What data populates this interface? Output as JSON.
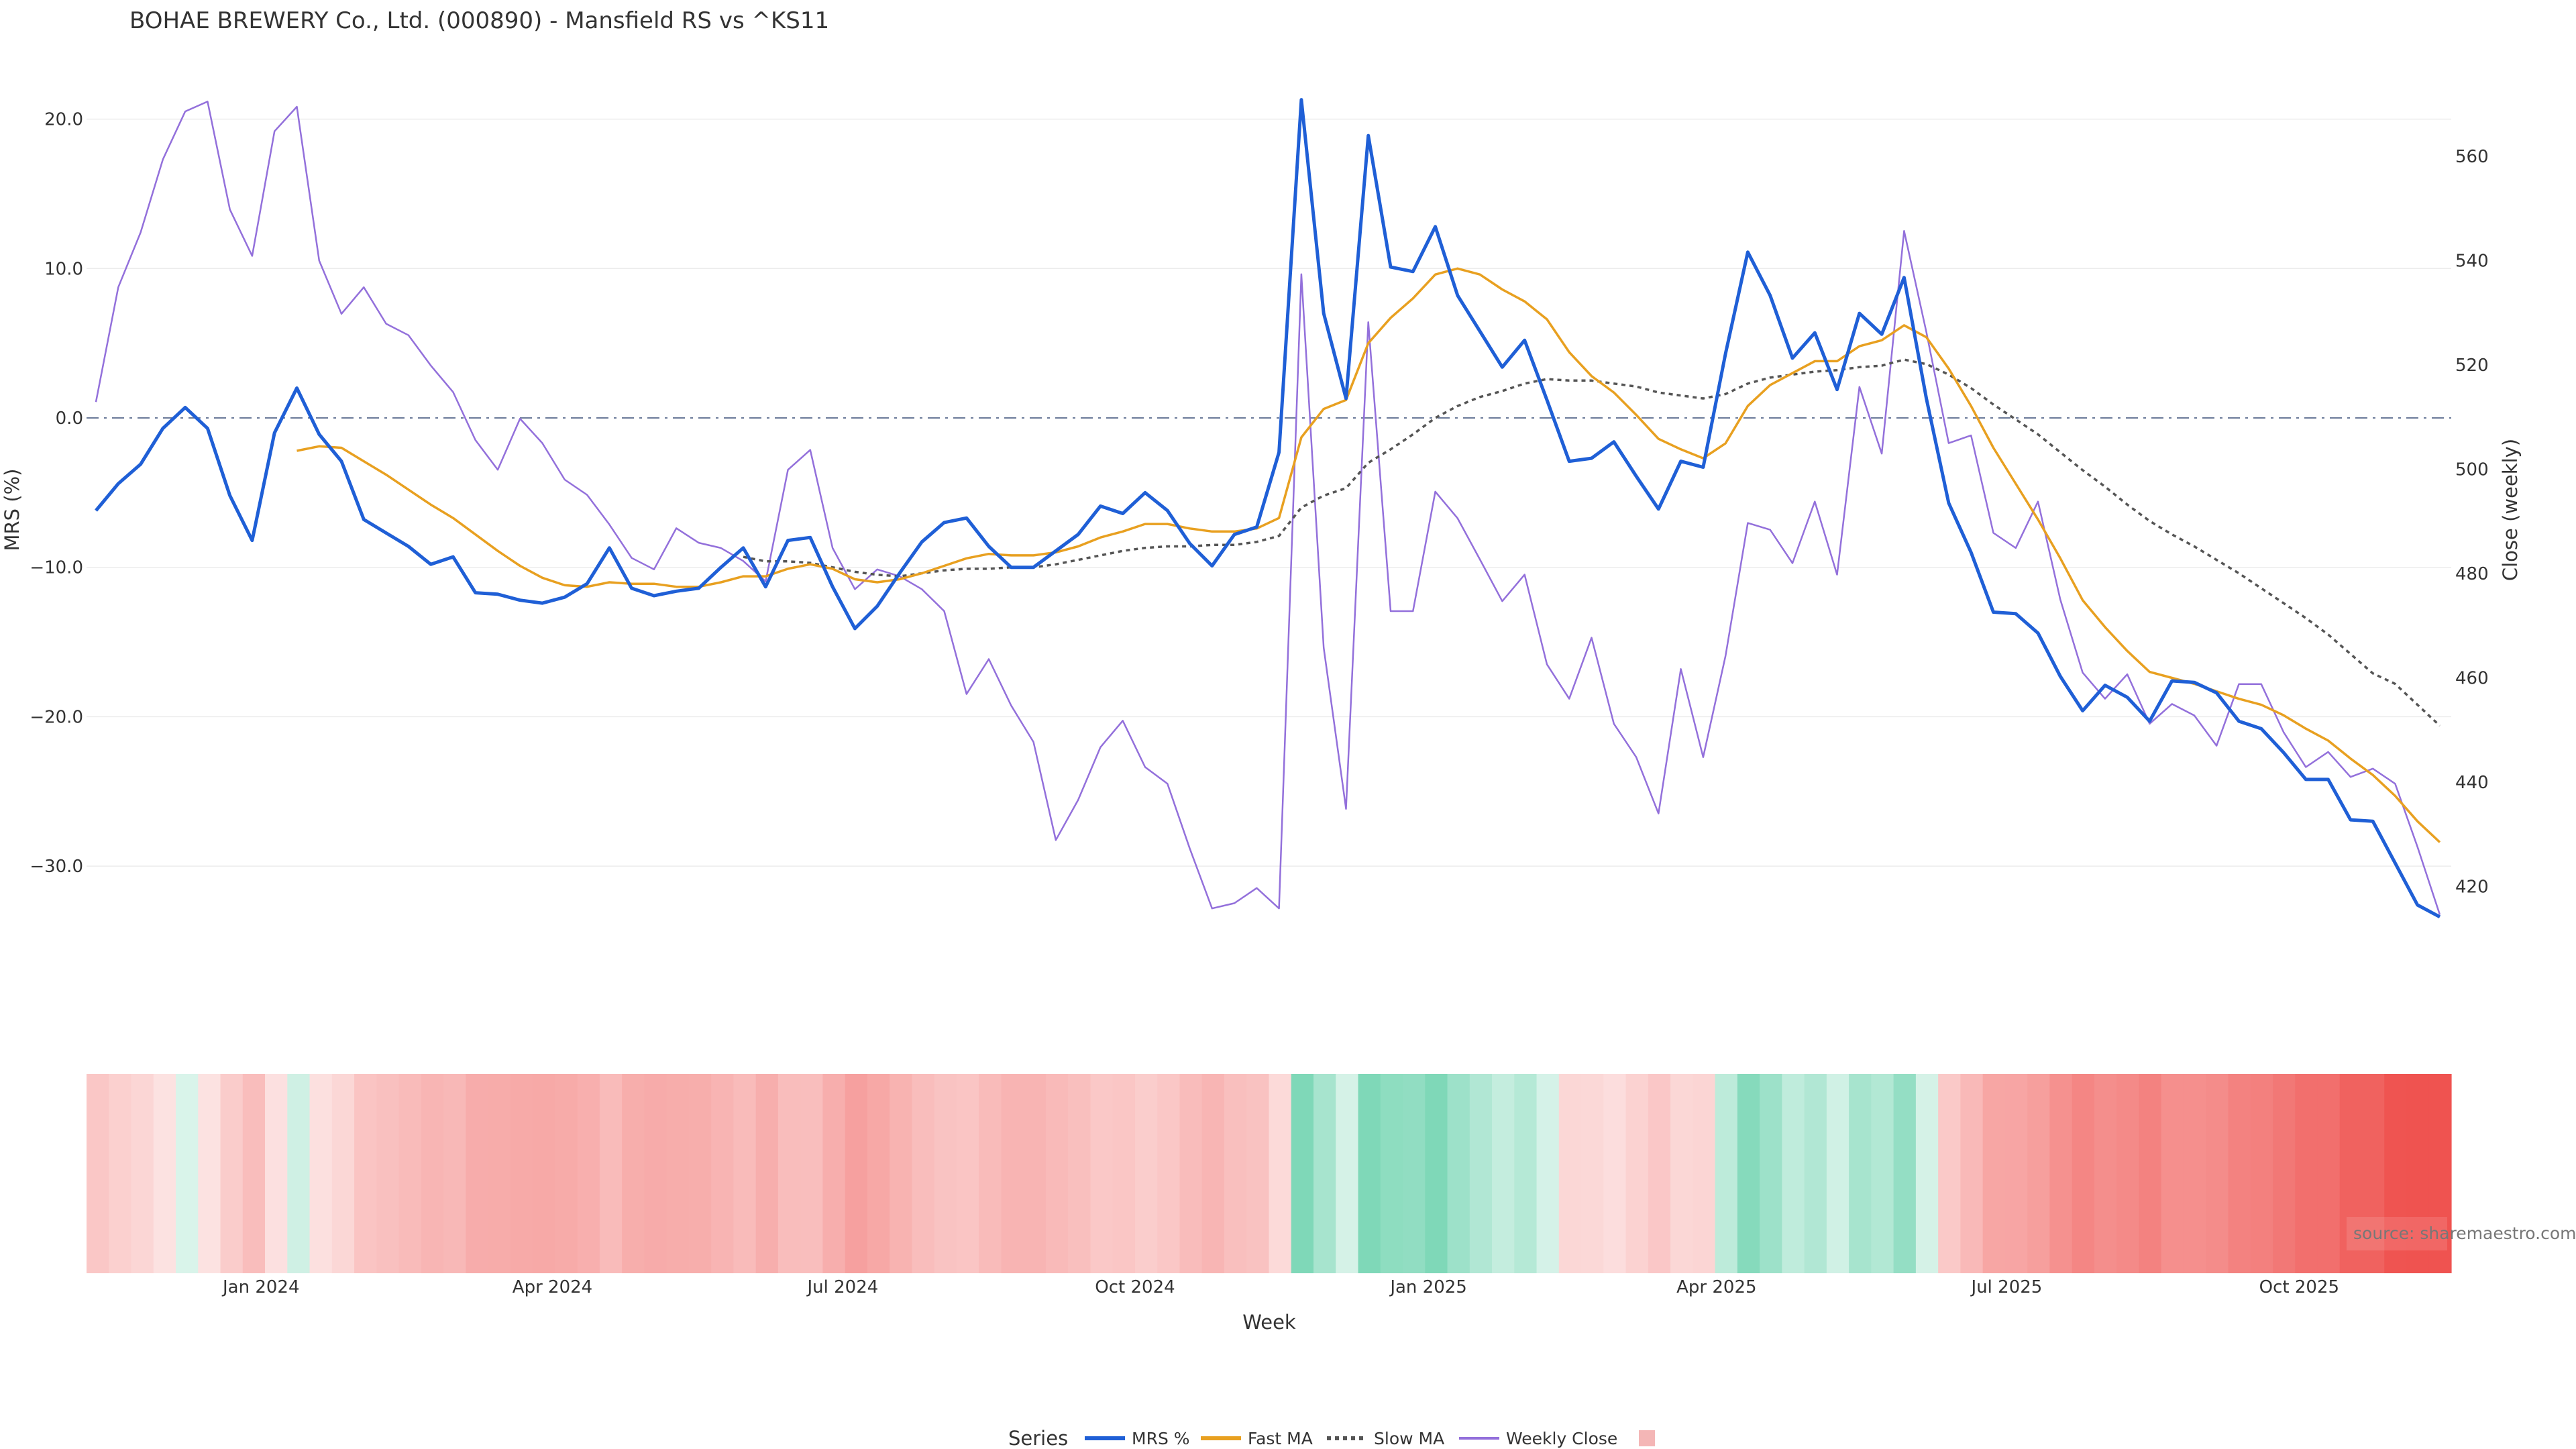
{
  "chart_data": {
    "type": "line",
    "title": "BOHAE BREWERY Co., Ltd. (000890) - Mansfield RS vs ^KS11",
    "xlabel": "Week",
    "ylabel_left": "MRS (%)",
    "ylabel_right": "Close (weekly)",
    "left_ylim": [
      -36,
      24
    ],
    "left_ticks": [
      20,
      10,
      0,
      -10,
      -20,
      -30
    ],
    "left_tick_labels": [
      "20.0",
      "10.0",
      "0.0",
      "−10.0",
      "−20.0",
      "−30.0"
    ],
    "right_ylim": [
      410,
      572
    ],
    "right_ticks": [
      560,
      540,
      520,
      500,
      480,
      460,
      440,
      420
    ],
    "right_tick_labels": [
      "560",
      "540",
      "520",
      "500",
      "480",
      "460",
      "440",
      "420"
    ],
    "x_ticks": [
      {
        "label": "Jan 2024",
        "week": 7.4
      },
      {
        "label": "Apr 2024",
        "week": 20.45
      },
      {
        "label": "Jul 2024",
        "week": 33.46
      },
      {
        "label": "Oct 2024",
        "week": 46.55
      },
      {
        "label": "Jan 2025",
        "week": 59.7
      },
      {
        "label": "Apr 2025",
        "week": 72.6
      },
      {
        "label": "Jul 2025",
        "week": 85.6
      },
      {
        "label": "Oct 2025",
        "week": 98.7
      }
    ],
    "grid": true,
    "zero_line": true,
    "legend_title": "Series",
    "legend_placement": "bottom-center",
    "series": [
      {
        "name": "MRS %",
        "axis": "left",
        "color": "#1f5fd6",
        "start": 0,
        "values": [
          -6.2,
          -4.4,
          -3.1,
          -0.7,
          0.7,
          -0.7,
          -5.2,
          -8.2,
          -1.0,
          2.0,
          -1.1,
          -2.9,
          -6.8,
          -7.7,
          -8.6,
          -9.8,
          -9.3,
          -11.7,
          -11.8,
          -12.2,
          -12.4,
          -12.0,
          -11.1,
          -8.7,
          -11.4,
          -11.9,
          -11.6,
          -11.4,
          -10.0,
          -8.7,
          -11.3,
          -8.2,
          -8.0,
          -11.3,
          -14.1,
          -12.6,
          -10.4,
          -8.3,
          -7.0,
          -6.7,
          -8.6,
          -10.0,
          -10.0,
          -8.9,
          -7.8,
          -5.9,
          -6.4,
          -5.0,
          -6.2,
          -8.4,
          -9.9,
          -7.8,
          -7.3,
          -2.3,
          21.3,
          7.0,
          1.3,
          18.9,
          10.1,
          9.8,
          12.8,
          8.2,
          5.8,
          3.4,
          5.2,
          1.2,
          -2.9,
          -2.7,
          -1.6,
          -3.9,
          -6.1,
          -2.9,
          -3.3,
          4.3,
          11.1,
          8.2,
          4.0,
          5.7,
          1.9,
          7.0,
          5.6,
          9.4,
          1.3,
          -5.7,
          -9.0,
          -13.0,
          -13.1,
          -14.4,
          -17.3,
          -19.6,
          -17.9,
          -18.7,
          -20.3,
          -17.6,
          -17.7,
          -18.4,
          -20.3,
          -20.8,
          -22.4,
          -24.2,
          -24.2,
          -26.9,
          -27.0,
          -29.8,
          -32.6,
          -33.4
        ]
      },
      {
        "name": "Fast MA",
        "axis": "left",
        "color": "#e8a020",
        "start": 9,
        "values": [
          -2.2,
          -1.9,
          -2.0,
          -2.9,
          -3.8,
          -4.8,
          -5.8,
          -6.7,
          -7.8,
          -8.9,
          -9.9,
          -10.7,
          -11.2,
          -11.3,
          -11.0,
          -11.1,
          -11.1,
          -11.3,
          -11.3,
          -11.0,
          -10.6,
          -10.6,
          -10.1,
          -9.8,
          -10.1,
          -10.8,
          -11.0,
          -10.8,
          -10.4,
          -9.9,
          -9.4,
          -9.1,
          -9.2,
          -9.2,
          -9.0,
          -8.6,
          -8.0,
          -7.6,
          -7.1,
          -7.1,
          -7.4,
          -7.6,
          -7.6,
          -7.4,
          -6.7,
          -1.3,
          0.6,
          1.2,
          5.0,
          6.7,
          8.0,
          9.6,
          10.0,
          9.6,
          8.6,
          7.8,
          6.6,
          4.4,
          2.8,
          1.7,
          0.2,
          -1.4,
          -2.1,
          -2.7,
          -1.7,
          0.8,
          2.2,
          3.0,
          3.8,
          3.8,
          4.8,
          5.2,
          6.2,
          5.4,
          3.3,
          0.8,
          -2.0,
          -4.4,
          -6.8,
          -9.4,
          -12.2,
          -14.0,
          -15.6,
          -17.0,
          -17.4,
          -17.8,
          -18.3,
          -18.8,
          -19.2,
          -19.9,
          -20.8,
          -21.6,
          -22.8,
          -23.9,
          -25.3,
          -27.0,
          -28.4
        ]
      },
      {
        "name": "Slow MA",
        "axis": "left",
        "color": "#555555",
        "dashed": true,
        "start": 29,
        "values": [
          -9.3,
          -9.6,
          -9.6,
          -9.7,
          -10.0,
          -10.3,
          -10.5,
          -10.6,
          -10.4,
          -10.2,
          -10.1,
          -10.1,
          -10.0,
          -10.0,
          -9.8,
          -9.5,
          -9.2,
          -8.9,
          -8.7,
          -8.6,
          -8.6,
          -8.5,
          -8.5,
          -8.3,
          -7.9,
          -6.0,
          -5.2,
          -4.7,
          -3.0,
          -2.1,
          -1.1,
          0.0,
          0.8,
          1.4,
          1.8,
          2.3,
          2.6,
          2.5,
          2.5,
          2.3,
          2.1,
          1.7,
          1.5,
          1.3,
          1.6,
          2.3,
          2.7,
          2.9,
          3.1,
          3.2,
          3.4,
          3.5,
          3.9,
          3.6,
          2.9,
          2.0,
          0.9,
          -0.1,
          -1.1,
          -2.3,
          -3.5,
          -4.6,
          -5.8,
          -6.9,
          -7.8,
          -8.6,
          -9.5,
          -10.4,
          -11.4,
          -12.4,
          -13.4,
          -14.5,
          -15.8,
          -17.1,
          -17.8,
          -19.2,
          -20.6
        ]
      },
      {
        "name": "Weekly Close",
        "axis": "right",
        "color": "#9370db",
        "start": 0,
        "values": [
          512.9,
          534.9,
          545.4,
          559.4,
          568.6,
          570.5,
          549.8,
          540.9,
          564.8,
          569.5,
          540.0,
          529.8,
          534.9,
          527.9,
          525.7,
          519.9,
          514.8,
          505.6,
          499.9,
          509.7,
          505.0,
          498.0,
          495.1,
          489.4,
          483.0,
          480.8,
          488.7,
          485.9,
          484.9,
          482.4,
          478.5,
          499.9,
          503.7,
          484.9,
          477.0,
          480.8,
          479.5,
          477.0,
          472.8,
          456.9,
          463.6,
          454.7,
          447.7,
          428.9,
          436.6,
          446.7,
          451.8,
          442.9,
          439.7,
          427.3,
          415.8,
          416.8,
          419.7,
          415.8,
          537.4,
          465.8,
          434.9,
          528.2,
          472.8,
          472.8,
          495.7,
          490.6,
          482.7,
          474.7,
          479.8,
          462.6,
          456.0,
          467.7,
          451.2,
          444.8,
          434.0,
          461.7,
          444.8,
          464.2,
          489.7,
          488.4,
          482.0,
          493.8,
          479.8,
          515.8,
          503.0,
          545.7,
          526.3,
          505.0,
          506.5,
          487.8,
          484.9,
          493.8,
          475.0,
          461.0,
          456.0,
          460.7,
          451.2,
          455.0,
          452.8,
          447.0,
          458.8,
          458.8,
          449.6,
          442.9,
          445.8,
          441.0,
          442.6,
          439.7,
          427.6,
          414.6
        ]
      }
    ],
    "heatmap": {
      "based_on": "MRS %",
      "negative_color": "#ef5350",
      "positive_color": "#7fd8b8",
      "swatch_color": "#f4b6b6"
    },
    "source": "source: sharemaestro.com"
  }
}
